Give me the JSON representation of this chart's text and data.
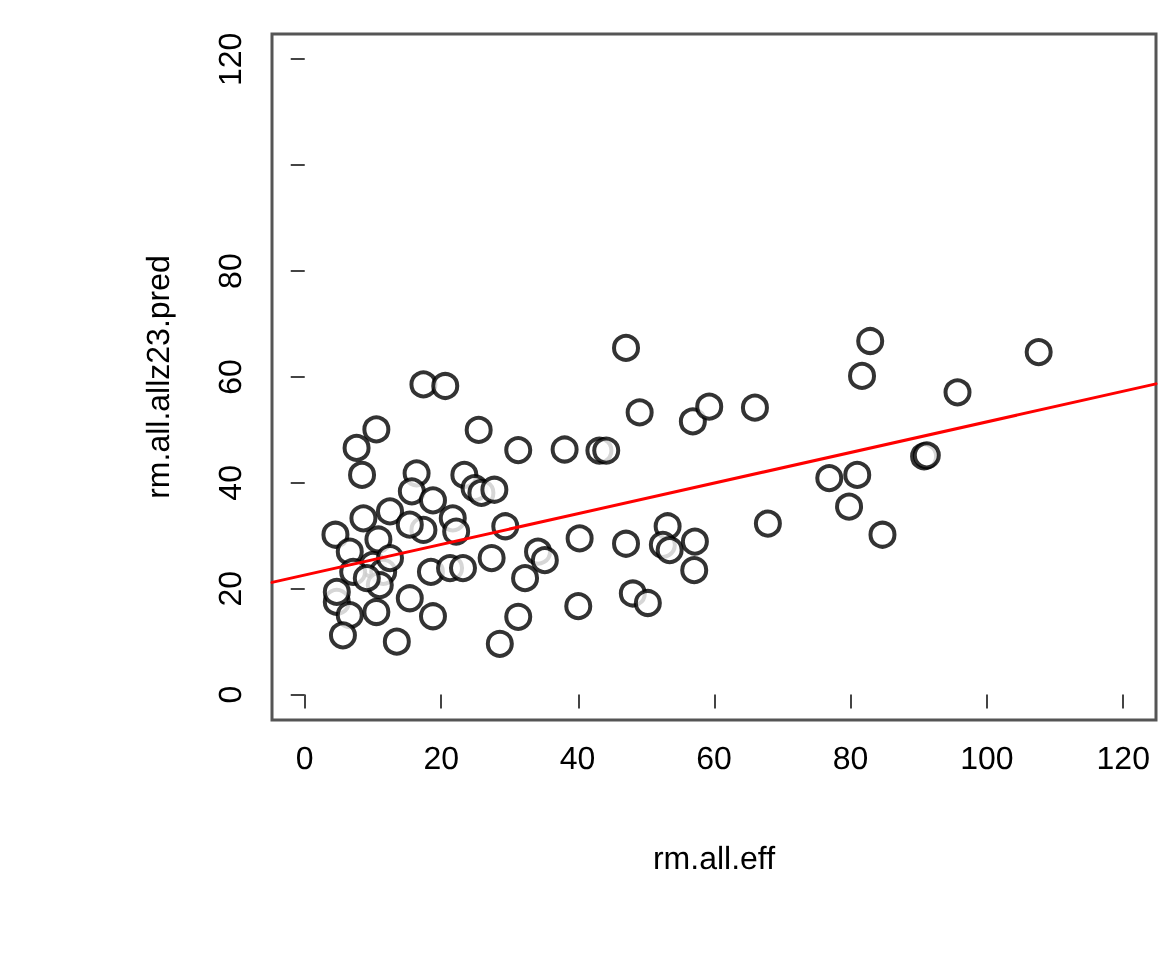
{
  "chart_data": {
    "type": "scatter",
    "xlabel": "rm.all.eff",
    "ylabel": "rm.all.allz23.pred",
    "xlim": [
      -4.8,
      124.8
    ],
    "ylim": [
      -4.8,
      124.8
    ],
    "xticks": [
      0,
      20,
      40,
      60,
      80,
      100,
      120
    ],
    "yticks": [
      0,
      20,
      40,
      60,
      80,
      {
        "value": 100,
        "label": null
      },
      120
    ],
    "grid": false,
    "marker": "circle",
    "series": [
      {
        "color": "#000000",
        "x": [
          47.1,
          17.4,
          20.6,
          49.1,
          10.5,
          25.5,
          7.6,
          31.3,
          38.1,
          43.2,
          44.2,
          8.4,
          16.4,
          23.4,
          24.9,
          25.9,
          27.8,
          15.7,
          18.8,
          12.5,
          8.6,
          17.4,
          21.7,
          22.2,
          29.4,
          4.5,
          10.8,
          15.4,
          6.6,
          10.0,
          11.5,
          7.1,
          12.5,
          18.5,
          21.3,
          23.2,
          27.4,
          34.2,
          35.2,
          32.3,
          40.3,
          47.1,
          4.7,
          6.6,
          10.5,
          15.4,
          18.8,
          5.6,
          13.5,
          28.6,
          31.3,
          40.1,
          11.0,
          4.7,
          9.1,
          82.9,
          81.7,
          107.6,
          95.7,
          56.9,
          59.3,
          66.0,
          76.9,
          81.0,
          79.8,
          90.8,
          91.2,
          84.7,
          67.9,
          53.2,
          52.5,
          53.5,
          57.2,
          57.1,
          48.1,
          50.3
        ],
        "values": [
          65.5,
          58.6,
          58.3,
          53.3,
          50.1,
          50.0,
          46.6,
          46.2,
          46.3,
          46.1,
          46.1,
          41.5,
          41.8,
          41.5,
          39.0,
          38.1,
          38.7,
          38.4,
          36.7,
          34.6,
          33.3,
          31.1,
          33.3,
          30.8,
          31.8,
          30.2,
          29.3,
          32.1,
          27.0,
          24.5,
          23.2,
          23.2,
          25.8,
          23.2,
          23.9,
          23.9,
          25.8,
          27.0,
          25.4,
          22.0,
          29.5,
          28.5,
          17.5,
          15.0,
          15.6,
          18.2,
          14.8,
          11.2,
          10.0,
          9.6,
          14.7,
          16.7,
          20.7,
          19.4,
          22.0,
          66.8,
          60.2,
          64.7,
          57.1,
          51.6,
          54.4,
          54.2,
          40.9,
          41.5,
          35.5,
          45.0,
          45.2,
          30.2,
          32.3,
          31.8,
          28.3,
          27.3,
          28.9,
          23.5,
          19.1,
          17.3
        ]
      },
      {
        "type": "line",
        "color": "#ff0000",
        "line_style": "solid",
        "marker": "none",
        "x": [
          -4.8,
          124.8
        ],
        "values": [
          21.2,
          58.7
        ]
      }
    ]
  }
}
